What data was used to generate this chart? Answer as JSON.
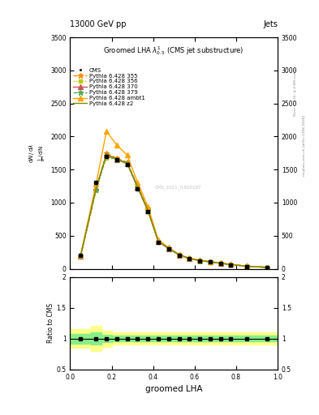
{
  "title": "13000 GeV pp",
  "title_right": "Jets",
  "plot_title": "Groomed LHA $\\lambda^{1}_{0.5}$ (CMS jet substructure)",
  "xlabel": "groomed LHA",
  "ylabel_ratio": "Ratio to CMS",
  "watermark": "CMS_2021_I1920187",
  "right_label1": "Rivet 3.1.10, ≥ 2.6M events",
  "right_label2": "mcplots.cern.ch [arXiv:1306.3436]",
  "xlim": [
    0,
    1
  ],
  "ylim_main": [
    0,
    3500
  ],
  "ylim_ratio": [
    0.5,
    2.0
  ],
  "x_bins": [
    0.05,
    0.125,
    0.175,
    0.225,
    0.275,
    0.325,
    0.375,
    0.425,
    0.475,
    0.525,
    0.575,
    0.625,
    0.675,
    0.725,
    0.775,
    0.85,
    0.95
  ],
  "cms_y": [
    200,
    1300,
    1700,
    1650,
    1580,
    1210,
    870,
    400,
    295,
    200,
    150,
    120,
    100,
    80,
    60,
    35,
    18
  ],
  "p355_y": [
    185,
    1200,
    1750,
    1670,
    1610,
    1255,
    910,
    415,
    308,
    210,
    155,
    125,
    105,
    83,
    63,
    38,
    20
  ],
  "p356_y": [
    180,
    1180,
    1680,
    1645,
    1590,
    1242,
    888,
    408,
    302,
    206,
    151,
    122,
    102,
    81,
    61,
    37,
    19
  ],
  "p370_y": [
    190,
    1215,
    1720,
    1655,
    1592,
    1228,
    875,
    410,
    304,
    208,
    153,
    123,
    103,
    82,
    62,
    38,
    20
  ],
  "p379_y": [
    187,
    1195,
    1705,
    1648,
    1588,
    1234,
    880,
    411,
    303,
    207,
    152,
    122,
    102,
    81,
    62,
    38,
    20
  ],
  "pambt1_y": [
    205,
    1285,
    2080,
    1870,
    1720,
    1308,
    940,
    438,
    320,
    215,
    160,
    130,
    110,
    87,
    66,
    41,
    22
  ],
  "pz2_y": [
    195,
    1225,
    1730,
    1660,
    1600,
    1245,
    882,
    415,
    310,
    212,
    156,
    126,
    106,
    84,
    64,
    39,
    21
  ],
  "colors": {
    "cms": "#000000",
    "p355": "#FF8C00",
    "p356": "#BBCC00",
    "p370": "#CC5555",
    "p379": "#55AA55",
    "pambt1": "#FFA500",
    "pz2": "#888800"
  },
  "bin_edges": [
    0.0,
    0.1,
    0.15,
    0.2,
    0.25,
    0.3,
    0.35,
    0.4,
    0.45,
    0.5,
    0.55,
    0.6,
    0.65,
    0.7,
    0.75,
    0.8,
    0.9,
    1.0
  ],
  "ratio_yellow_lo": [
    0.85,
    0.8,
    0.87,
    0.9,
    0.9,
    0.9,
    0.9,
    0.9,
    0.9,
    0.9,
    0.9,
    0.9,
    0.9,
    0.9,
    0.9,
    0.9,
    0.9
  ],
  "ratio_yellow_hi": [
    1.15,
    1.2,
    1.13,
    1.1,
    1.1,
    1.1,
    1.1,
    1.1,
    1.1,
    1.1,
    1.1,
    1.1,
    1.1,
    1.1,
    1.1,
    1.1,
    1.1
  ],
  "ratio_green_lo": [
    0.92,
    0.9,
    0.94,
    0.95,
    0.95,
    0.95,
    0.95,
    0.95,
    0.95,
    0.95,
    0.95,
    0.95,
    0.95,
    0.95,
    0.95,
    0.95,
    0.95
  ],
  "ratio_green_hi": [
    1.08,
    1.1,
    1.06,
    1.05,
    1.05,
    1.05,
    1.05,
    1.05,
    1.05,
    1.05,
    1.05,
    1.05,
    1.05,
    1.05,
    1.05,
    1.05,
    1.05
  ]
}
